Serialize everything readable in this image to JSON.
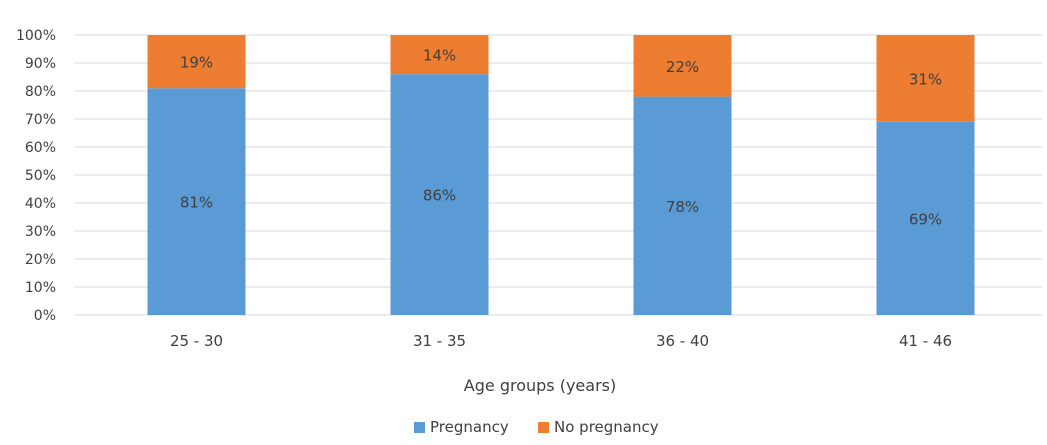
{
  "chart_data": {
    "type": "bar",
    "stacked": true,
    "percent_stacked": true,
    "categories": [
      "25 - 30",
      "31 - 35",
      "36 - 40",
      "41 - 46"
    ],
    "series": [
      {
        "name": "Pregnancy",
        "values": [
          81,
          86,
          78,
          69
        ],
        "labels": [
          "81%",
          "86%",
          "78%",
          "69%"
        ],
        "color": "#5b9bd5"
      },
      {
        "name": "No pregnancy",
        "values": [
          19,
          14,
          22,
          31
        ],
        "labels": [
          "19%",
          "14%",
          "22%",
          "31%"
        ],
        "color": "#ed7d31"
      }
    ],
    "title": "",
    "xlabel": "Age groups (years)",
    "ylabel": "",
    "ylim": [
      0,
      100
    ],
    "yticks": [
      0,
      10,
      20,
      30,
      40,
      50,
      60,
      70,
      80,
      90,
      100
    ],
    "ytick_labels": [
      "0%",
      "10%",
      "20%",
      "30%",
      "40%",
      "50%",
      "60%",
      "70%",
      "80%",
      "90%",
      "100%"
    ],
    "grid": true,
    "gridline_color": "#d9d9d9",
    "legend_position": "bottom"
  }
}
